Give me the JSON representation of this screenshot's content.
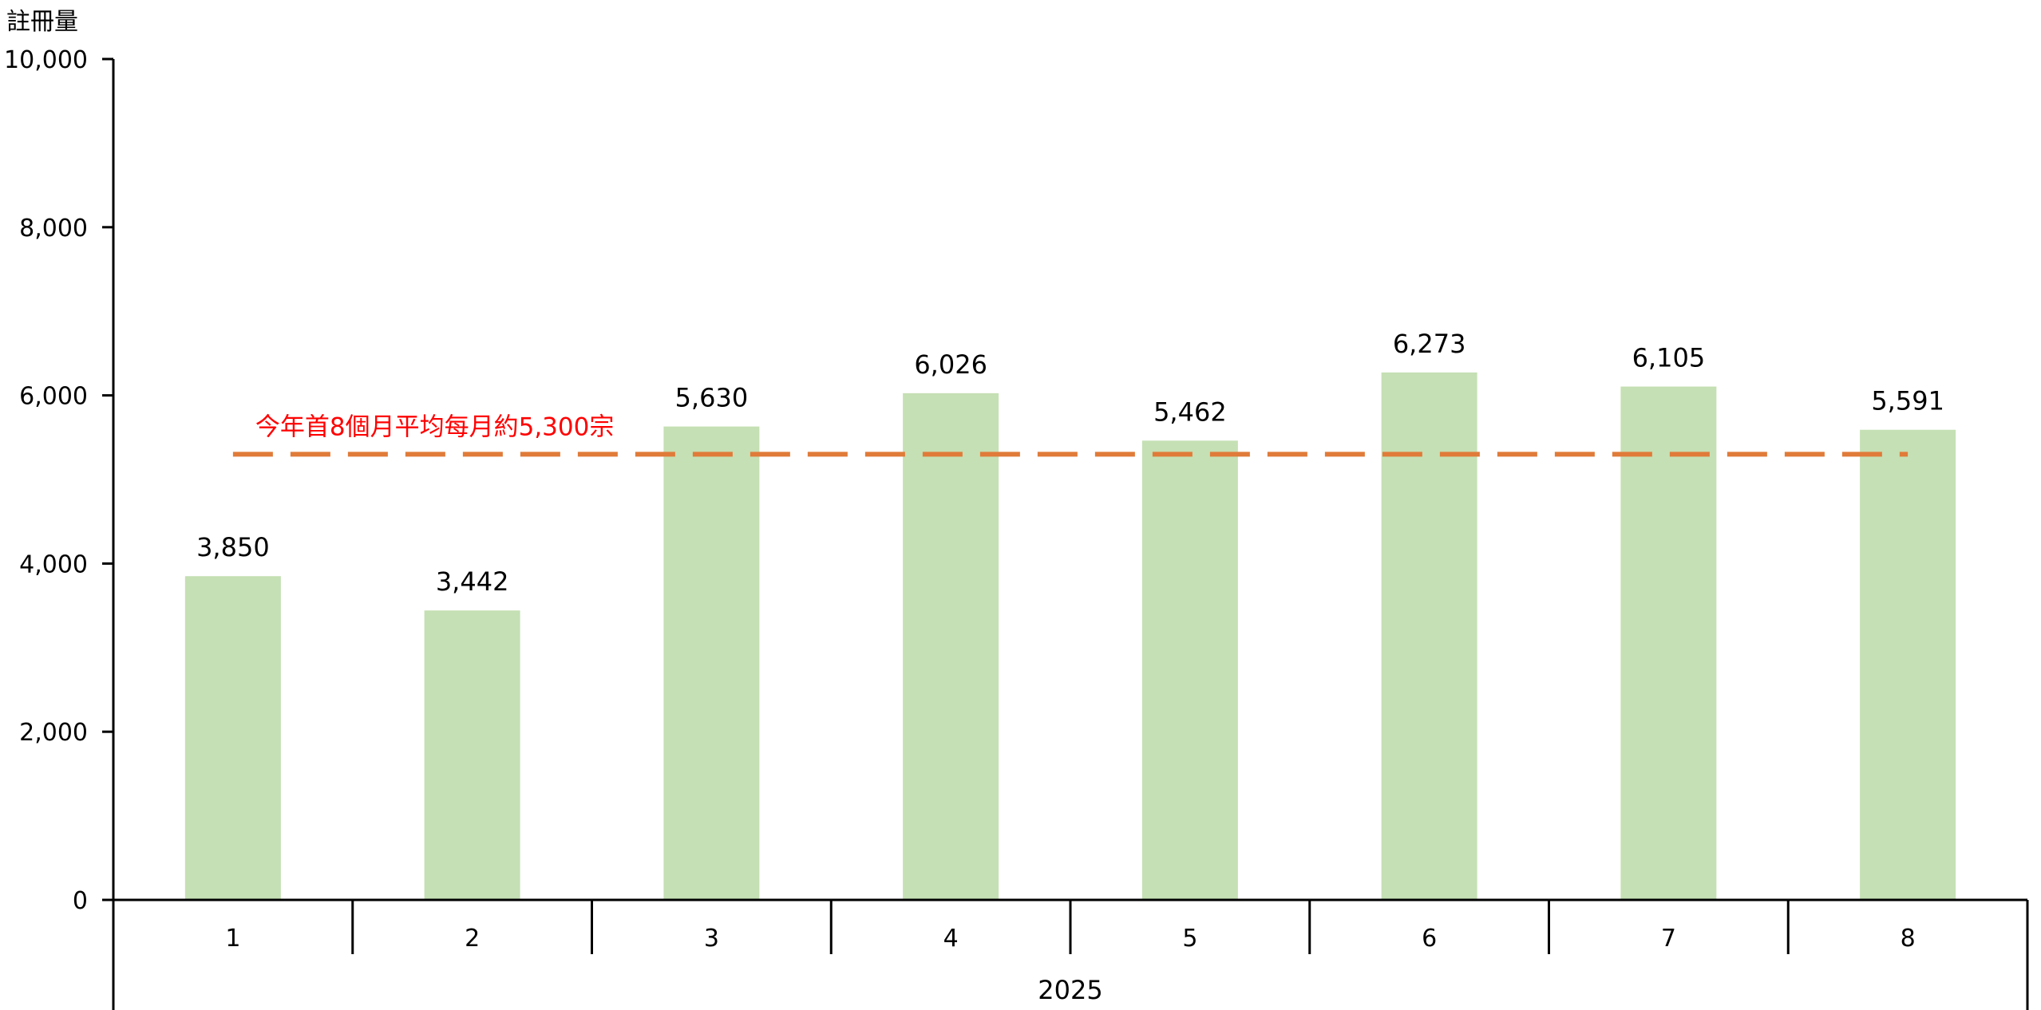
{
  "chart_data": {
    "type": "bar",
    "ylabel": "註冊量",
    "ylim": [
      0,
      10000
    ],
    "yticks": [
      0,
      2000,
      4000,
      6000,
      8000,
      10000
    ],
    "yticks_text": [
      "0",
      "2,000",
      "4,000",
      "6,000",
      "8,000",
      "10,000"
    ],
    "categories": [
      "1",
      "2",
      "3",
      "4",
      "5",
      "6",
      "7",
      "8"
    ],
    "group_label": "2025",
    "values": [
      3850,
      3442,
      5630,
      6026,
      5462,
      6273,
      6105,
      5591
    ],
    "data_labels": [
      "3,850",
      "3,442",
      "5,630",
      "6,026",
      "5,462",
      "6,273",
      "6,105",
      "5,591"
    ],
    "reference_line": {
      "value": 5300,
      "label": "今年首8個月平均每月約5,300宗",
      "style": "dashed"
    },
    "colors": {
      "bar": "#c5e0b4",
      "reference_line": "#e07b39",
      "annotation": "#ff0000",
      "axis": "#000000"
    },
    "grid": false
  }
}
